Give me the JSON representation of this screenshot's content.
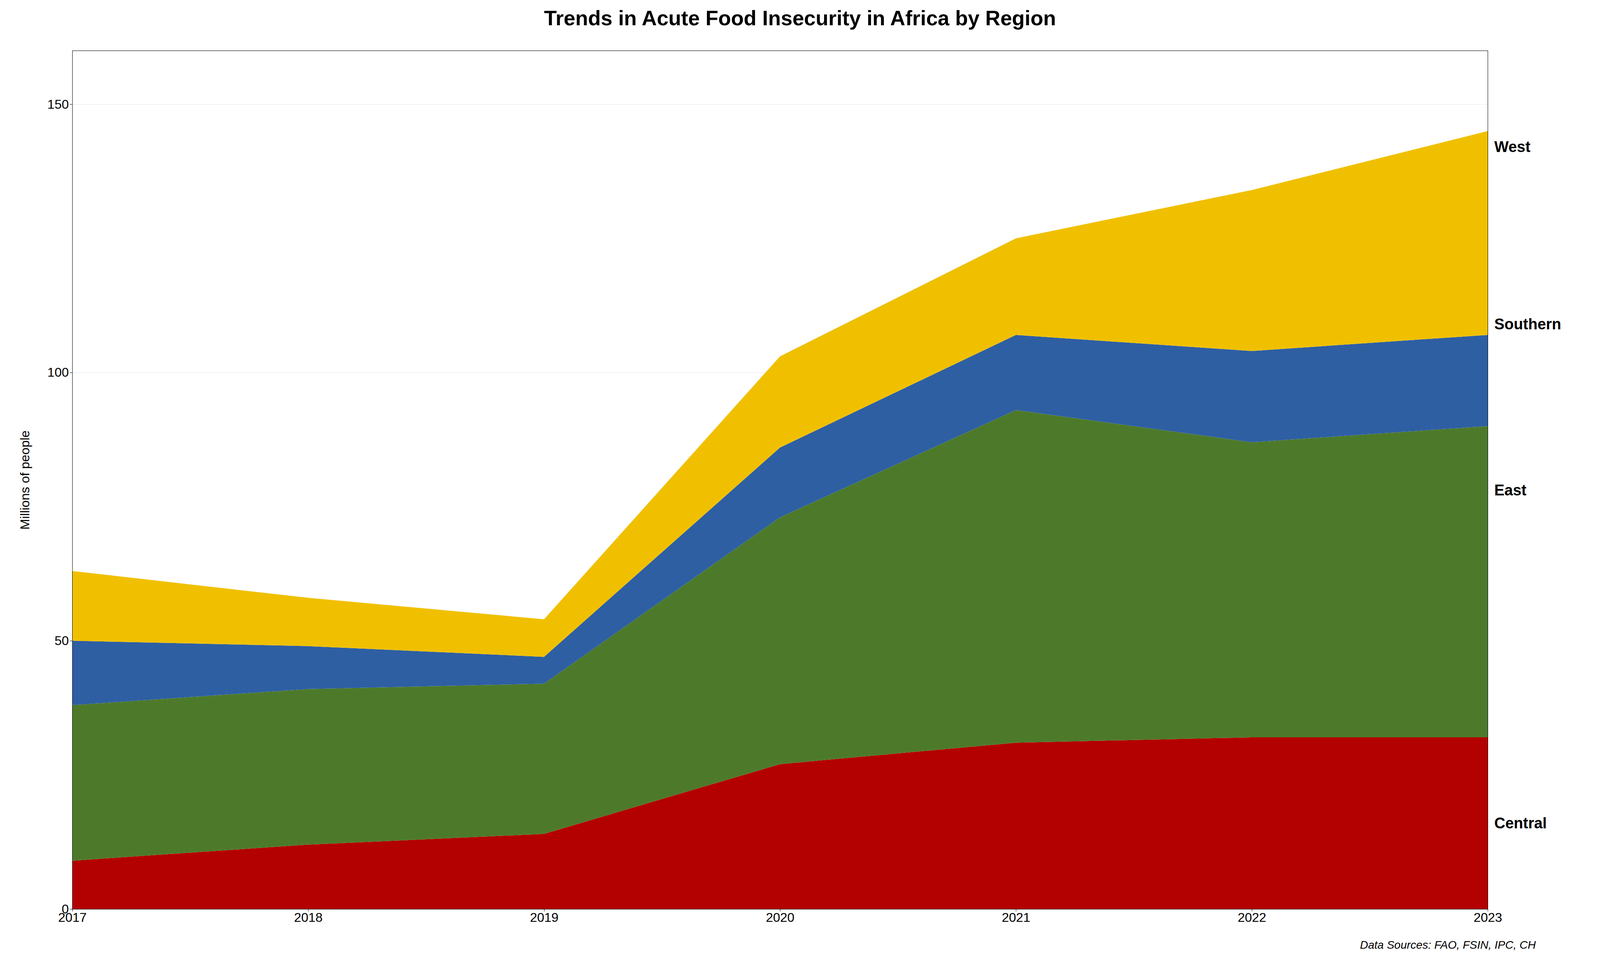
{
  "chart_data": {
    "type": "area",
    "stacked": true,
    "title": "Trends in Acute Food Insecurity in Africa by Region",
    "ylabel": "Millions of people",
    "caption": "Data Sources: FAO, FSIN, IPC, CH",
    "x": [
      2017,
      2018,
      2019,
      2020,
      2021,
      2022,
      2023
    ],
    "series": [
      {
        "name": "Central",
        "color": "#b30000",
        "values": [
          9,
          12,
          14,
          27,
          31,
          32,
          32
        ]
      },
      {
        "name": "East",
        "color": "#4d7a2a",
        "values": [
          29,
          29,
          28,
          46,
          62,
          55,
          58
        ]
      },
      {
        "name": "Southern",
        "color": "#2e5fa3",
        "values": [
          12,
          8,
          5,
          13,
          14,
          17,
          17
        ]
      },
      {
        "name": "West",
        "color": "#f0c000",
        "values": [
          13,
          9,
          7,
          17,
          18,
          30,
          38
        ]
      }
    ],
    "annotations": [
      {
        "text": "West",
        "x": 2023,
        "y": 142
      },
      {
        "text": "Southern",
        "x": 2023,
        "y": 109
      },
      {
        "text": "East",
        "x": 2023,
        "y": 78
      },
      {
        "text": "Central",
        "x": 2023,
        "y": 16
      }
    ],
    "xlim": [
      2017,
      2023
    ],
    "xticks": [
      2017,
      2018,
      2019,
      2020,
      2021,
      2022,
      2023
    ],
    "ylim": [
      0,
      160
    ],
    "yticks": [
      0,
      50,
      100,
      150
    ],
    "grid": true
  }
}
